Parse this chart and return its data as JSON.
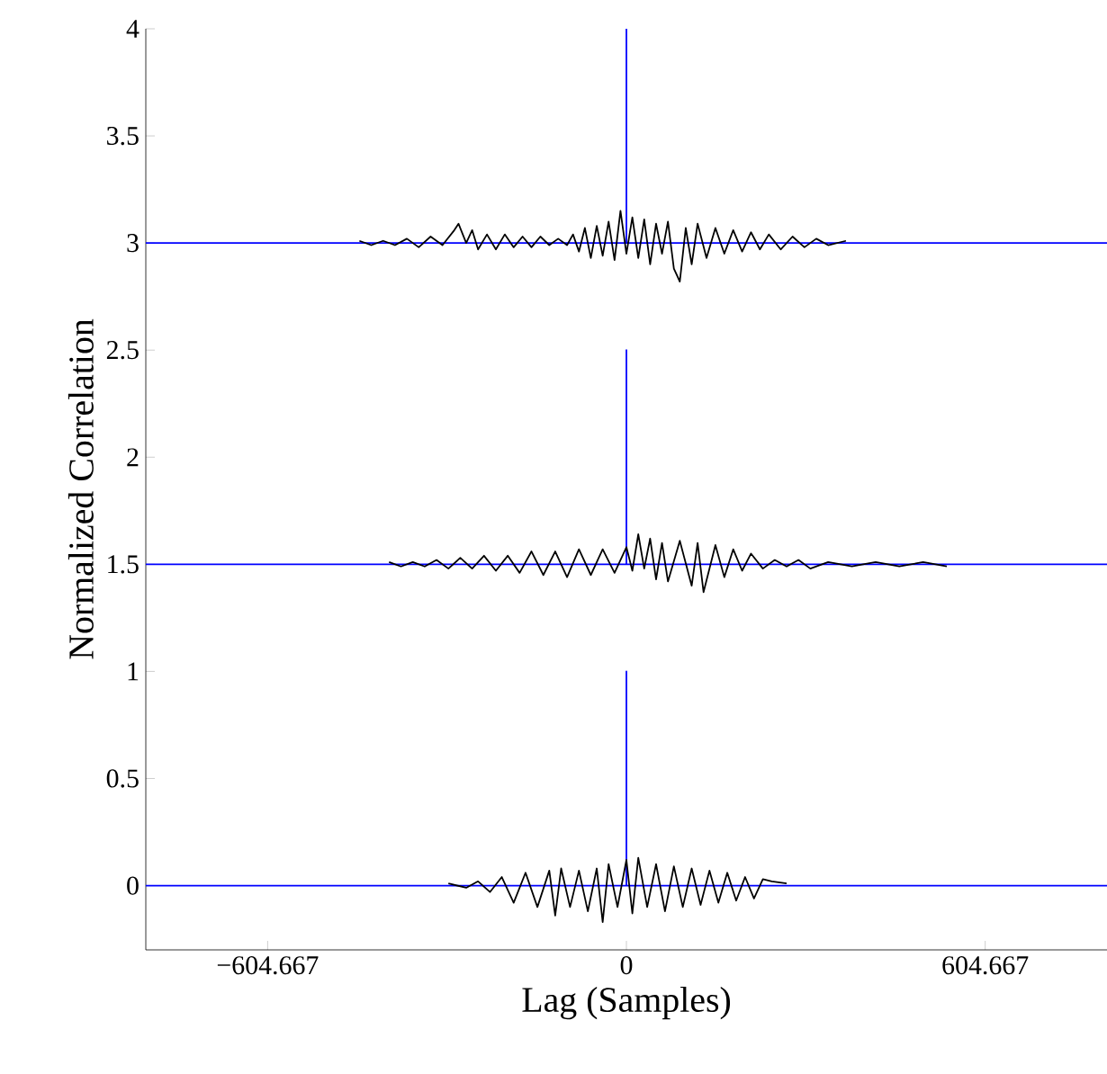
{
  "chart_data": {
    "type": "line",
    "xlabel": "Lag (Samples)",
    "ylabel": "Normalized Correlation",
    "xlim": [
      -810,
      810
    ],
    "ylim": [
      -0.3,
      4
    ],
    "xticks": [
      {
        "value": -604.667,
        "label": "−604.667"
      },
      0,
      604.667
    ],
    "yticks": [
      0,
      0.5,
      1,
      1.5,
      2,
      2.5,
      3,
      3.5,
      4
    ],
    "series": [
      {
        "color": "#0000ff",
        "x": [
          -810,
          0,
          0,
          0,
          810
        ],
        "values": [
          3,
          3,
          4,
          3,
          3
        ]
      },
      {
        "color": "#0000ff",
        "x": [
          -810,
          0,
          0,
          0,
          810
        ],
        "values": [
          1.5,
          1.5,
          2.5,
          1.5,
          1.5
        ]
      },
      {
        "color": "#0000ff",
        "x": [
          -810,
          0,
          0,
          0,
          810
        ],
        "values": [
          0,
          0,
          1,
          0,
          0
        ]
      },
      {
        "color": "#000000",
        "x": [
          -450,
          -430,
          -410,
          -390,
          -370,
          -350,
          -330,
          -310,
          -290,
          -283,
          -270,
          -260,
          -250,
          -235,
          -220,
          -205,
          -190,
          -175,
          -160,
          -145,
          -130,
          -115,
          -100,
          -90,
          -80,
          -70,
          -60,
          -50,
          -40,
          -30,
          -20,
          -10,
          0,
          10,
          20,
          30,
          40,
          50,
          60,
          70,
          80,
          90,
          100,
          110,
          120,
          135,
          150,
          165,
          180,
          195,
          210,
          225,
          240,
          260,
          280,
          300,
          320,
          340,
          370
        ],
        "values": [
          3.01,
          2.99,
          3.01,
          2.99,
          3.02,
          2.98,
          3.03,
          2.99,
          3.06,
          3.09,
          3.0,
          3.06,
          2.97,
          3.04,
          2.97,
          3.04,
          2.98,
          3.03,
          2.98,
          3.03,
          2.99,
          3.02,
          2.99,
          3.04,
          2.96,
          3.07,
          2.93,
          3.08,
          2.94,
          3.1,
          2.92,
          3.15,
          2.95,
          3.12,
          2.93,
          3.11,
          2.9,
          3.09,
          2.95,
          3.1,
          2.88,
          2.82,
          3.07,
          2.9,
          3.09,
          2.93,
          3.07,
          2.95,
          3.06,
          2.96,
          3.05,
          2.97,
          3.04,
          2.97,
          3.03,
          2.98,
          3.02,
          2.99,
          3.01
        ]
      },
      {
        "color": "#000000",
        "x": [
          -400,
          -380,
          -360,
          -340,
          -320,
          -300,
          -280,
          -260,
          -240,
          -220,
          -200,
          -180,
          -160,
          -140,
          -120,
          -100,
          -80,
          -60,
          -40,
          -20,
          0,
          10,
          20,
          30,
          40,
          50,
          60,
          70,
          90,
          110,
          120,
          130,
          150,
          165,
          180,
          195,
          210,
          230,
          250,
          270,
          290,
          310,
          340,
          380,
          420,
          460,
          500,
          540
        ],
        "values": [
          1.51,
          1.49,
          1.51,
          1.49,
          1.52,
          1.48,
          1.53,
          1.48,
          1.54,
          1.47,
          1.54,
          1.46,
          1.56,
          1.45,
          1.56,
          1.44,
          1.57,
          1.45,
          1.57,
          1.46,
          1.58,
          1.47,
          1.64,
          1.48,
          1.62,
          1.43,
          1.6,
          1.42,
          1.61,
          1.4,
          1.6,
          1.37,
          1.59,
          1.44,
          1.57,
          1.47,
          1.55,
          1.48,
          1.52,
          1.49,
          1.52,
          1.48,
          1.51,
          1.49,
          1.51,
          1.49,
          1.51,
          1.49
        ]
      },
      {
        "color": "#000000",
        "x": [
          -300,
          -270,
          -250,
          -230,
          -210,
          -190,
          -170,
          -150,
          -130,
          -120,
          -110,
          -95,
          -80,
          -65,
          -50,
          -40,
          -30,
          -15,
          0,
          10,
          20,
          35,
          50,
          65,
          80,
          95,
          110,
          125,
          140,
          155,
          170,
          185,
          200,
          215,
          230,
          245,
          270
        ],
        "values": [
          0.01,
          -0.01,
          0.02,
          -0.03,
          0.04,
          -0.08,
          0.06,
          -0.1,
          0.07,
          -0.14,
          0.08,
          -0.1,
          0.07,
          -0.12,
          0.08,
          -0.17,
          0.1,
          -0.1,
          0.12,
          -0.13,
          0.13,
          -0.1,
          0.1,
          -0.12,
          0.09,
          -0.1,
          0.08,
          -0.09,
          0.07,
          -0.08,
          0.06,
          -0.07,
          0.04,
          -0.06,
          0.03,
          0.02,
          0.01
        ]
      }
    ]
  }
}
